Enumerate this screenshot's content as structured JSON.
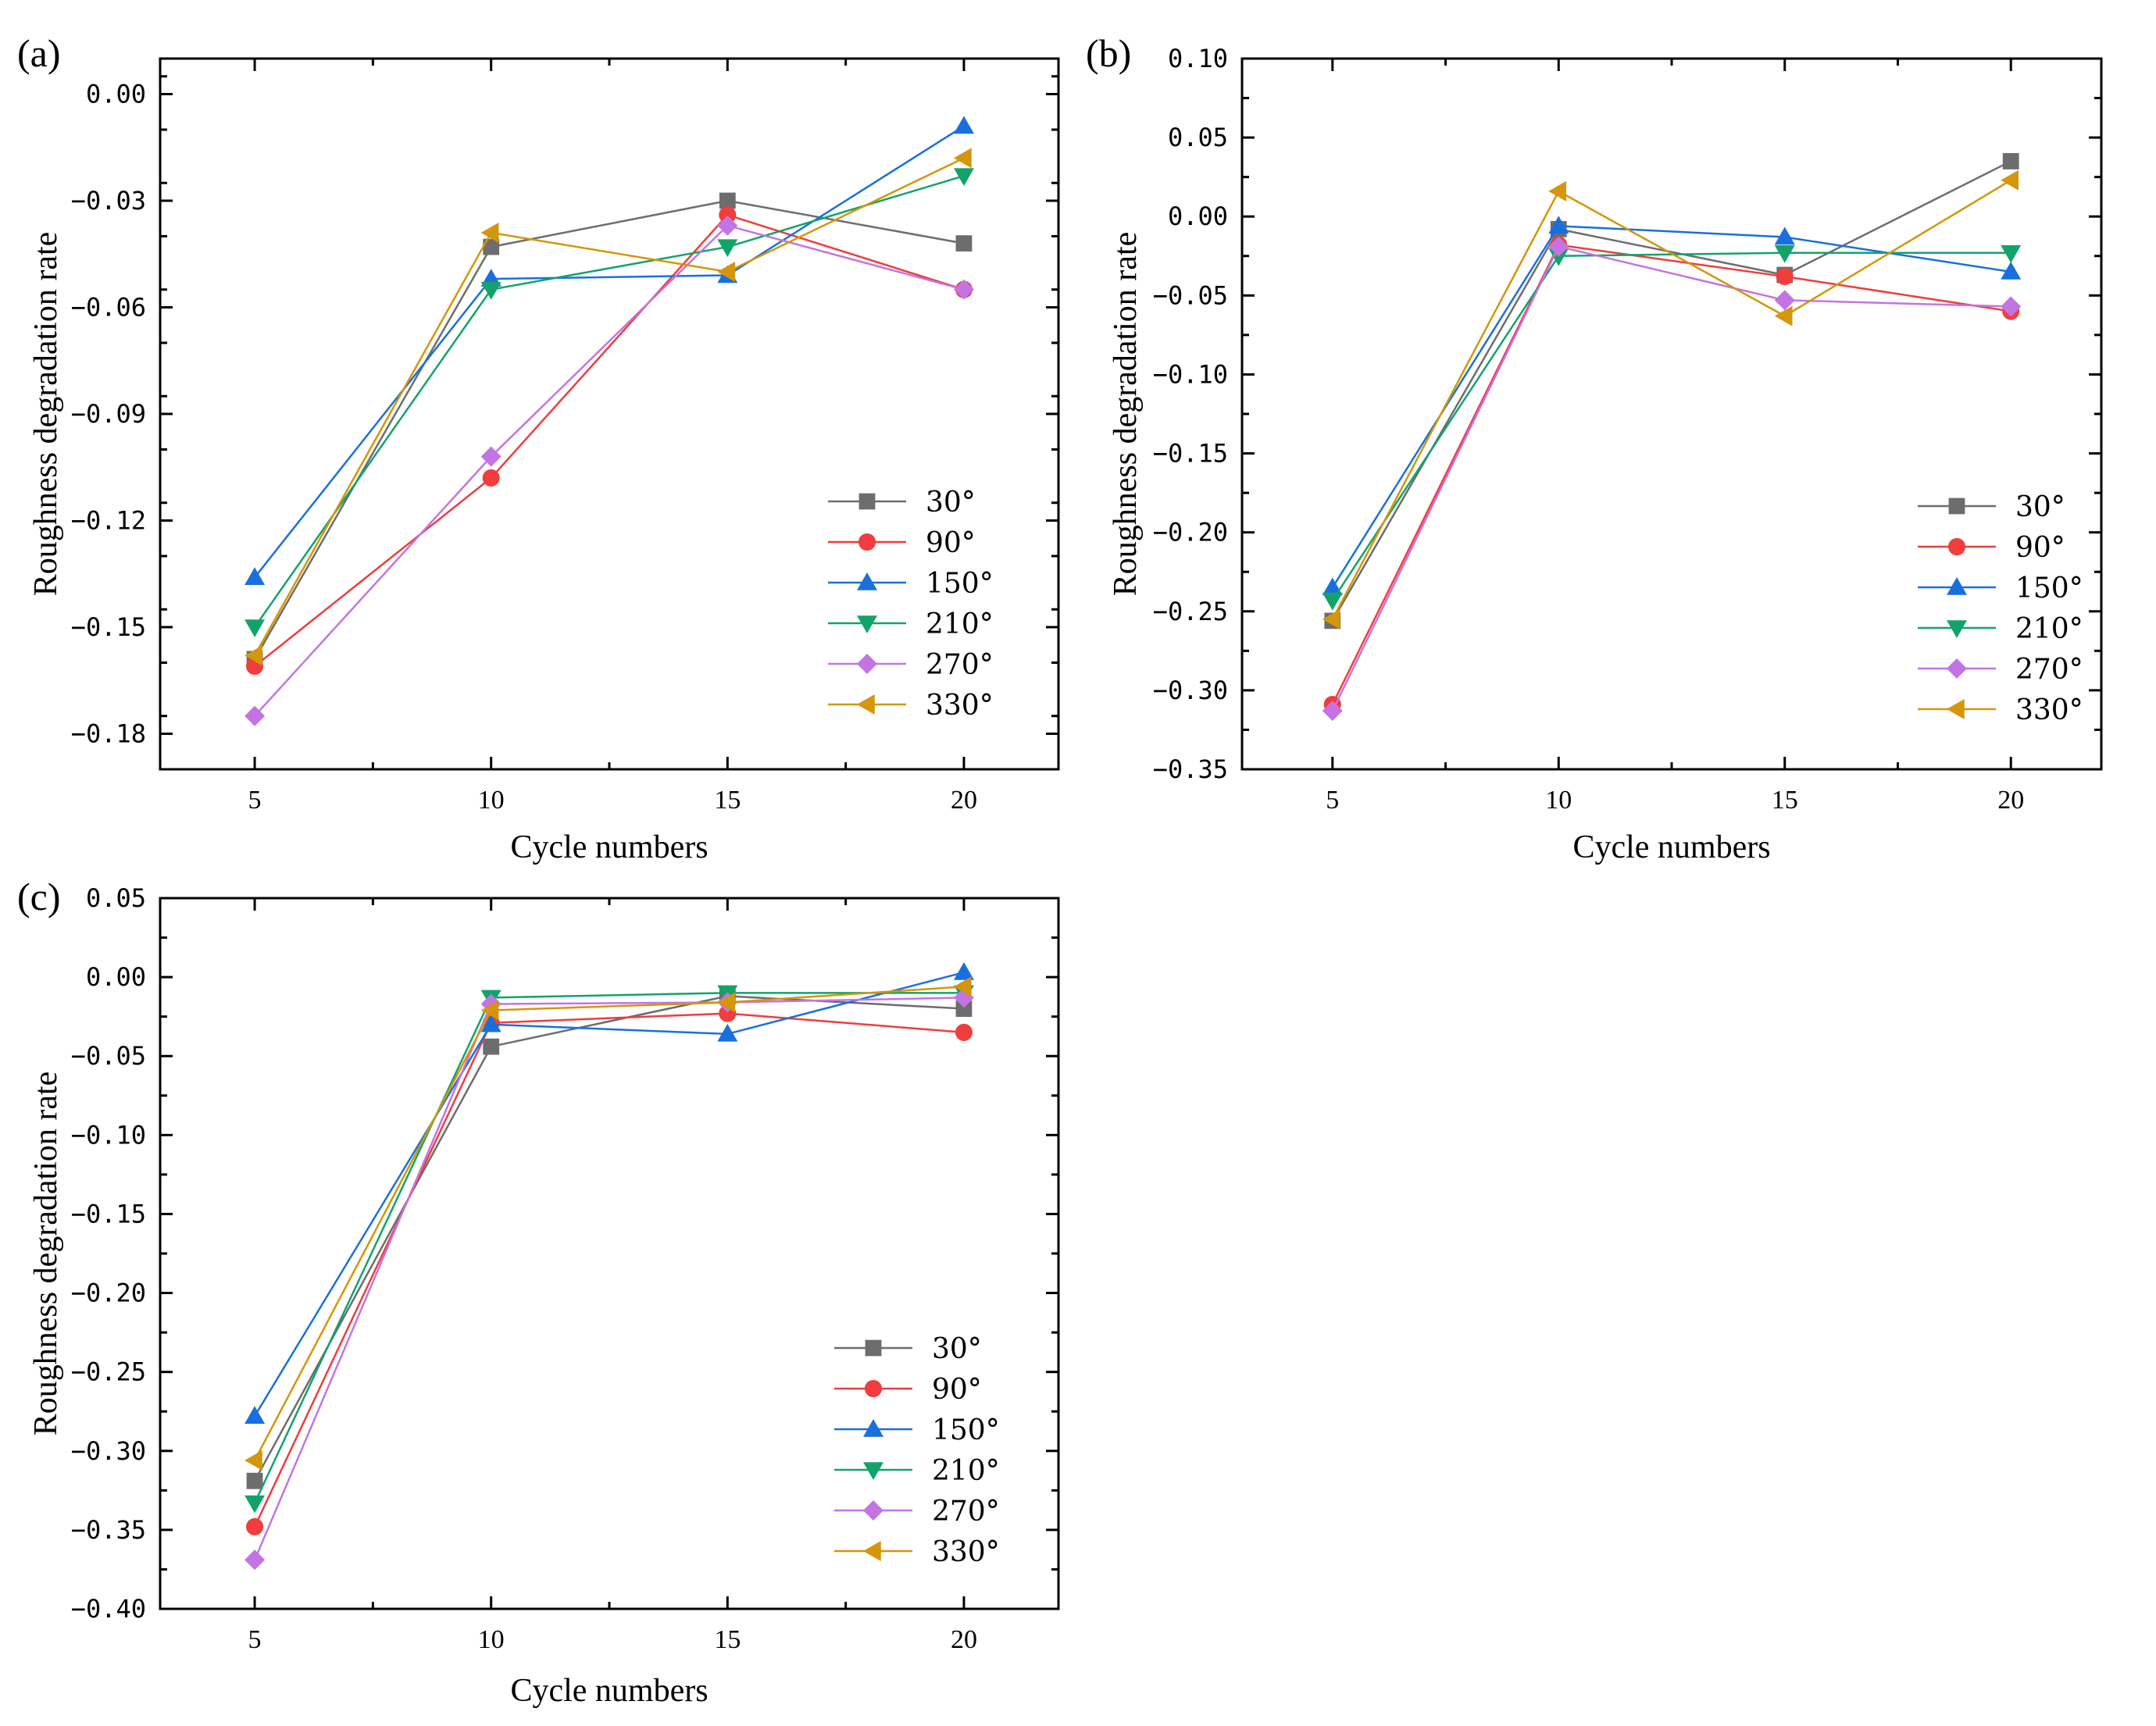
{
  "chart_data": [
    {
      "panel": "(a)",
      "type": "line",
      "xlabel": "Cycle numbers",
      "ylabel": "Roughness degradation rate",
      "x": [
        5,
        10,
        15,
        20
      ],
      "xlim": [
        3,
        22
      ],
      "ylim": [
        -0.19,
        0.01
      ],
      "yticks": [
        0.0,
        -0.03,
        -0.06,
        -0.09,
        -0.12,
        -0.15,
        -0.18
      ],
      "ytick_labels": [
        "0.00",
        "−0.03",
        "−0.06",
        "−0.09",
        "−0.12",
        "−0.15",
        "−0.18"
      ],
      "xticks": [
        5,
        10,
        15,
        20
      ],
      "xtick_labels": [
        "5",
        "10",
        "15",
        "20"
      ],
      "legend_position": "lower-right",
      "series": [
        {
          "name": "30°",
          "color": "#6d6d6d",
          "marker": "square",
          "values": [
            -0.159,
            -0.043,
            -0.03,
            -0.042
          ]
        },
        {
          "name": "90°",
          "color": "#f03d3d",
          "marker": "circle",
          "values": [
            -0.161,
            -0.108,
            -0.034,
            -0.055
          ]
        },
        {
          "name": "150°",
          "color": "#1a6fdf",
          "marker": "triangle-up",
          "values": [
            -0.136,
            -0.052,
            -0.051,
            -0.009
          ]
        },
        {
          "name": "210°",
          "color": "#13a36a",
          "marker": "triangle-down",
          "values": [
            -0.15,
            -0.055,
            -0.043,
            -0.023
          ]
        },
        {
          "name": "270°",
          "color": "#c474e2",
          "marker": "diamond",
          "values": [
            -0.175,
            -0.102,
            -0.037,
            -0.055
          ]
        },
        {
          "name": "330°",
          "color": "#d4960a",
          "marker": "triangle-left",
          "values": [
            -0.158,
            -0.039,
            -0.05,
            -0.018
          ]
        }
      ]
    },
    {
      "panel": "(b)",
      "type": "line",
      "xlabel": "Cycle numbers",
      "ylabel": "Roughness degradation rate",
      "x": [
        5,
        10,
        15,
        20
      ],
      "xlim": [
        3,
        22
      ],
      "ylim": [
        -0.35,
        0.1
      ],
      "yticks": [
        0.1,
        0.05,
        0.0,
        -0.05,
        -0.1,
        -0.15,
        -0.2,
        -0.25,
        -0.3,
        -0.35
      ],
      "ytick_labels": [
        "0.10",
        "0.05",
        "0.00",
        "−0.05",
        "−0.10",
        "−0.15",
        "−0.20",
        "−0.25",
        "−0.30",
        "−0.35"
      ],
      "xticks": [
        5,
        10,
        15,
        20
      ],
      "xtick_labels": [
        "5",
        "10",
        "15",
        "20"
      ],
      "legend_position": "lower-right",
      "series": [
        {
          "name": "30°",
          "color": "#6d6d6d",
          "marker": "square",
          "values": [
            -0.256,
            -0.008,
            -0.037,
            0.035
          ]
        },
        {
          "name": "90°",
          "color": "#f03d3d",
          "marker": "circle",
          "values": [
            -0.309,
            -0.018,
            -0.038,
            -0.06
          ]
        },
        {
          "name": "150°",
          "color": "#1a6fdf",
          "marker": "triangle-up",
          "values": [
            -0.235,
            -0.006,
            -0.013,
            -0.035
          ]
        },
        {
          "name": "210°",
          "color": "#13a36a",
          "marker": "triangle-down",
          "values": [
            -0.243,
            -0.025,
            -0.023,
            -0.023
          ]
        },
        {
          "name": "270°",
          "color": "#c474e2",
          "marker": "diamond",
          "values": [
            -0.313,
            -0.019,
            -0.053,
            -0.057
          ]
        },
        {
          "name": "330°",
          "color": "#d4960a",
          "marker": "triangle-left",
          "values": [
            -0.255,
            0.016,
            -0.063,
            0.023
          ]
        }
      ]
    },
    {
      "panel": "(c)",
      "type": "line",
      "xlabel": "Cycle numbers",
      "ylabel": "Roughness degradation rate",
      "x": [
        5,
        10,
        15,
        20
      ],
      "xlim": [
        3,
        22
      ],
      "ylim": [
        -0.4,
        0.05
      ],
      "yticks": [
        0.05,
        0.0,
        -0.05,
        -0.1,
        -0.15,
        -0.2,
        -0.25,
        -0.3,
        -0.35,
        -0.4
      ],
      "ytick_labels": [
        "0.05",
        "0.00",
        "−0.05",
        "−0.10",
        "−0.15",
        "−0.20",
        "−0.25",
        "−0.30",
        "−0.35",
        "−0.40"
      ],
      "xticks": [
        5,
        10,
        15,
        20
      ],
      "xtick_labels": [
        "5",
        "10",
        "15",
        "20"
      ],
      "legend_position": "lower-right",
      "series": [
        {
          "name": "30°",
          "color": "#6d6d6d",
          "marker": "square",
          "values": [
            -0.319,
            -0.044,
            -0.012,
            -0.02
          ]
        },
        {
          "name": "90°",
          "color": "#f03d3d",
          "marker": "circle",
          "values": [
            -0.348,
            -0.029,
            -0.023,
            -0.035
          ]
        },
        {
          "name": "150°",
          "color": "#1a6fdf",
          "marker": "triangle-up",
          "values": [
            -0.278,
            -0.03,
            -0.036,
            0.003
          ]
        },
        {
          "name": "210°",
          "color": "#13a36a",
          "marker": "triangle-down",
          "values": [
            -0.333,
            -0.013,
            -0.01,
            -0.01
          ]
        },
        {
          "name": "270°",
          "color": "#c474e2",
          "marker": "diamond",
          "values": [
            -0.369,
            -0.017,
            -0.016,
            -0.013
          ]
        },
        {
          "name": "330°",
          "color": "#d4960a",
          "marker": "triangle-left",
          "values": [
            -0.306,
            -0.021,
            -0.016,
            -0.006
          ]
        }
      ]
    }
  ]
}
